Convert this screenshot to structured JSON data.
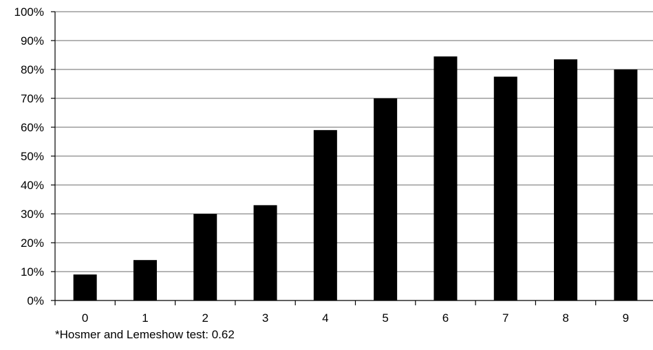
{
  "chart_data": {
    "type": "bar",
    "categories": [
      "0",
      "1",
      "2",
      "3",
      "4",
      "5",
      "6",
      "7",
      "8",
      "9"
    ],
    "values": [
      9,
      14,
      30,
      33,
      59,
      70,
      84.5,
      77.5,
      83.5,
      80
    ],
    "title": "",
    "xlabel": "",
    "ylabel": "",
    "ylim": [
      0,
      100
    ],
    "yticks": [
      0,
      10,
      20,
      30,
      40,
      50,
      60,
      70,
      80,
      90,
      100
    ],
    "ytick_labels": [
      "0%",
      "10%",
      "20%",
      "30%",
      "40%",
      "50%",
      "60%",
      "70%",
      "80%",
      "90%",
      "100%"
    ],
    "grid": true,
    "legend": "none",
    "bar_color": "#000000",
    "grid_color": "#888888"
  },
  "note": "*Hosmer and Lemeshow test: 0.62"
}
